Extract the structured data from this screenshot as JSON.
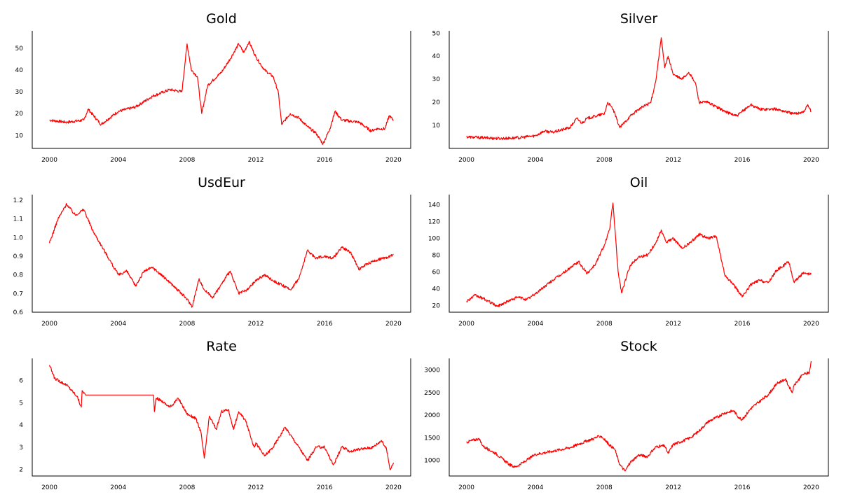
{
  "chart_data": [
    {
      "type": "line",
      "title": "Gold",
      "x_ticks": [
        "2000",
        "2004",
        "2008",
        "2012",
        "2016",
        "2020"
      ],
      "y_ticks": [
        "10",
        "20",
        "30",
        "40",
        "50"
      ],
      "xlim": [
        1999,
        2021
      ],
      "ylim": [
        4,
        58
      ],
      "series_color": "#ff0000",
      "x": [
        2000.0,
        2001.0,
        2002.0,
        2002.25,
        2003.0,
        2004.0,
        2005.0,
        2006.0,
        2007.0,
        2007.7,
        2008.0,
        2008.25,
        2008.6,
        2008.85,
        2009.2,
        2010.0,
        2010.5,
        2011.0,
        2011.3,
        2011.6,
        2012.0,
        2012.5,
        2013.0,
        2013.3,
        2013.5,
        2014.0,
        2014.5,
        2015.0,
        2015.5,
        2015.9,
        2016.3,
        2016.6,
        2017.0,
        2018.0,
        2018.7,
        2019.0,
        2019.5,
        2019.75,
        2020.0
      ],
      "y": [
        17,
        16,
        17,
        22,
        15,
        21,
        23,
        28,
        31,
        30,
        52,
        40,
        37,
        20,
        33,
        39,
        45,
        52,
        48,
        53,
        46,
        40,
        37,
        30,
        15,
        20,
        18,
        14,
        11,
        6,
        13,
        21,
        17,
        16,
        12,
        13,
        13,
        19,
        17
      ]
    },
    {
      "type": "line",
      "title": "Silver",
      "x_ticks": [
        "2000",
        "2004",
        "2008",
        "2012",
        "2016",
        "2020"
      ],
      "y_ticks": [
        "10",
        "20",
        "30",
        "40",
        "50"
      ],
      "xlim": [
        1999,
        2021
      ],
      "ylim": [
        0,
        51
      ],
      "series_color": "#ff0000",
      "x": [
        2000.0,
        2001.0,
        2002.0,
        2003.0,
        2004.0,
        2004.5,
        2005.0,
        2006.0,
        2006.4,
        2006.7,
        2007.0,
        2008.0,
        2008.2,
        2008.5,
        2008.9,
        2009.5,
        2010.0,
        2010.7,
        2011.0,
        2011.3,
        2011.5,
        2011.7,
        2012.0,
        2012.5,
        2012.9,
        2013.3,
        2013.5,
        2014.0,
        2015.0,
        2015.7,
        2016.0,
        2016.5,
        2017.0,
        2018.0,
        2019.0,
        2019.6,
        2019.8,
        2020.0
      ],
      "y": [
        5,
        4.6,
        4.3,
        4.6,
        5.5,
        7.5,
        7,
        9,
        13,
        11,
        13,
        15,
        20,
        17,
        9,
        14,
        17,
        20,
        30,
        48,
        35,
        40,
        32,
        30,
        33,
        28,
        20,
        20,
        16,
        14,
        16,
        19,
        17,
        17,
        15,
        16,
        19,
        16
      ]
    },
    {
      "type": "line",
      "title": "UsdEur",
      "x_ticks": [
        "2000",
        "2004",
        "2008",
        "2012",
        "2016",
        "2020"
      ],
      "y_ticks": [
        "0.6",
        "0.7",
        "0.8",
        "0.9",
        "1.0",
        "1.1",
        "1.2"
      ],
      "xlim": [
        1999,
        2021
      ],
      "ylim": [
        0.6,
        1.23
      ],
      "series_color": "#ff0000",
      "x": [
        2000.0,
        2000.5,
        2001.0,
        2001.5,
        2002.0,
        2002.5,
        2003.0,
        2003.5,
        2004.0,
        2004.5,
        2005.0,
        2005.5,
        2006.0,
        2007.0,
        2008.0,
        2008.3,
        2008.7,
        2009.0,
        2009.5,
        2010.0,
        2010.5,
        2011.0,
        2011.5,
        2012.0,
        2012.5,
        2013.0,
        2014.0,
        2014.5,
        2015.0,
        2015.5,
        2016.0,
        2016.5,
        2017.0,
        2017.5,
        2018.0,
        2018.5,
        2019.0,
        2019.5,
        2020.0
      ],
      "y": [
        0.97,
        1.1,
        1.18,
        1.12,
        1.15,
        1.04,
        0.96,
        0.88,
        0.8,
        0.82,
        0.74,
        0.82,
        0.84,
        0.76,
        0.67,
        0.63,
        0.78,
        0.72,
        0.68,
        0.75,
        0.82,
        0.7,
        0.72,
        0.77,
        0.8,
        0.77,
        0.72,
        0.78,
        0.93,
        0.89,
        0.9,
        0.89,
        0.95,
        0.92,
        0.83,
        0.86,
        0.88,
        0.89,
        0.91
      ]
    },
    {
      "type": "line",
      "title": "Oil",
      "x_ticks": [
        "2000",
        "2004",
        "2008",
        "2012",
        "2016",
        "2020"
      ],
      "y_ticks": [
        "20",
        "40",
        "60",
        "80",
        "100",
        "120",
        "140"
      ],
      "xlim": [
        1999,
        2021
      ],
      "ylim": [
        12,
        152
      ],
      "series_color": "#ff0000",
      "x": [
        2000.0,
        2000.5,
        2001.0,
        2001.8,
        2002.5,
        2003.0,
        2003.5,
        2004.0,
        2005.0,
        2005.7,
        2006.5,
        2007.0,
        2007.5,
        2008.0,
        2008.3,
        2008.5,
        2008.8,
        2009.0,
        2009.5,
        2010.0,
        2010.5,
        2011.0,
        2011.3,
        2011.6,
        2012.0,
        2012.5,
        2013.0,
        2013.5,
        2014.0,
        2014.5,
        2015.0,
        2015.5,
        2016.0,
        2016.5,
        2017.0,
        2017.5,
        2018.0,
        2018.7,
        2019.0,
        2019.5,
        2020.0
      ],
      "y": [
        25,
        32,
        28,
        19,
        26,
        30,
        27,
        34,
        50,
        60,
        72,
        58,
        70,
        92,
        110,
        142,
        60,
        35,
        68,
        78,
        80,
        95,
        110,
        95,
        100,
        88,
        95,
        105,
        100,
        102,
        55,
        45,
        30,
        45,
        50,
        47,
        62,
        72,
        48,
        58,
        57
      ]
    },
    {
      "type": "line",
      "title": "Rate",
      "x_ticks": [
        "2000",
        "2004",
        "2008",
        "2012",
        "2016",
        "2020"
      ],
      "y_ticks": [
        "2",
        "3",
        "4",
        "5",
        "6"
      ],
      "xlim": [
        1999,
        2021
      ],
      "ylim": [
        1.7,
        7.0
      ],
      "series_color": "#ff0000",
      "x": [
        2000.0,
        2000.3,
        2001.0,
        2001.6,
        2001.85,
        2001.9,
        2002.1,
        2006.05,
        2006.1,
        2006.2,
        2006.5,
        2007.0,
        2007.5,
        2008.0,
        2008.5,
        2008.8,
        2009.0,
        2009.3,
        2009.7,
        2010.0,
        2010.4,
        2010.7,
        2011.0,
        2011.4,
        2011.9,
        2012.0,
        2012.5,
        2013.0,
        2013.7,
        2014.5,
        2015.0,
        2015.5,
        2016.0,
        2016.5,
        2017.0,
        2017.5,
        2018.0,
        2018.8,
        2019.3,
        2019.6,
        2019.8,
        2020.0
      ],
      "y": [
        6.7,
        6.1,
        5.8,
        5.3,
        4.8,
        5.55,
        5.35,
        5.35,
        4.6,
        5.2,
        5.1,
        4.8,
        5.2,
        4.5,
        4.3,
        3.7,
        2.5,
        4.4,
        3.8,
        4.6,
        4.7,
        3.8,
        4.6,
        4.2,
        3.0,
        3.2,
        2.6,
        3.0,
        3.9,
        3.0,
        2.4,
        3.0,
        3.0,
        2.2,
        3.0,
        2.8,
        2.9,
        3.0,
        3.3,
        2.9,
        2.0,
        2.3
      ]
    },
    {
      "type": "line",
      "title": "Stock",
      "x_ticks": [
        "2000",
        "2004",
        "2008",
        "2012",
        "2016",
        "2020"
      ],
      "y_ticks": [
        "1000",
        "1500",
        "2000",
        "2500",
        "3000"
      ],
      "xlim": [
        1999,
        2021
      ],
      "ylim": [
        650,
        3260
      ],
      "series_color": "#ff0000",
      "x": [
        2000.0,
        2000.7,
        2001.0,
        2001.7,
        2002.5,
        2002.8,
        2003.0,
        2003.5,
        2004.0,
        2005.0,
        2006.0,
        2007.0,
        2007.8,
        2008.3,
        2008.6,
        2008.9,
        2009.2,
        2009.5,
        2010.0,
        2010.5,
        2011.0,
        2011.5,
        2011.7,
        2012.0,
        2012.5,
        2013.0,
        2013.5,
        2014.0,
        2014.5,
        2015.0,
        2015.5,
        2015.8,
        2016.0,
        2016.5,
        2017.0,
        2017.5,
        2018.0,
        2018.5,
        2018.9,
        2019.0,
        2019.5,
        2019.9,
        2020.0
      ],
      "y": [
        1400,
        1480,
        1300,
        1150,
        900,
        850,
        880,
        1000,
        1130,
        1200,
        1280,
        1430,
        1540,
        1340,
        1250,
        900,
        760,
        950,
        1120,
        1080,
        1300,
        1320,
        1150,
        1350,
        1420,
        1500,
        1650,
        1850,
        1950,
        2050,
        2100,
        1950,
        1900,
        2150,
        2300,
        2450,
        2700,
        2800,
        2500,
        2650,
        2900,
        2950,
        3200
      ]
    }
  ]
}
